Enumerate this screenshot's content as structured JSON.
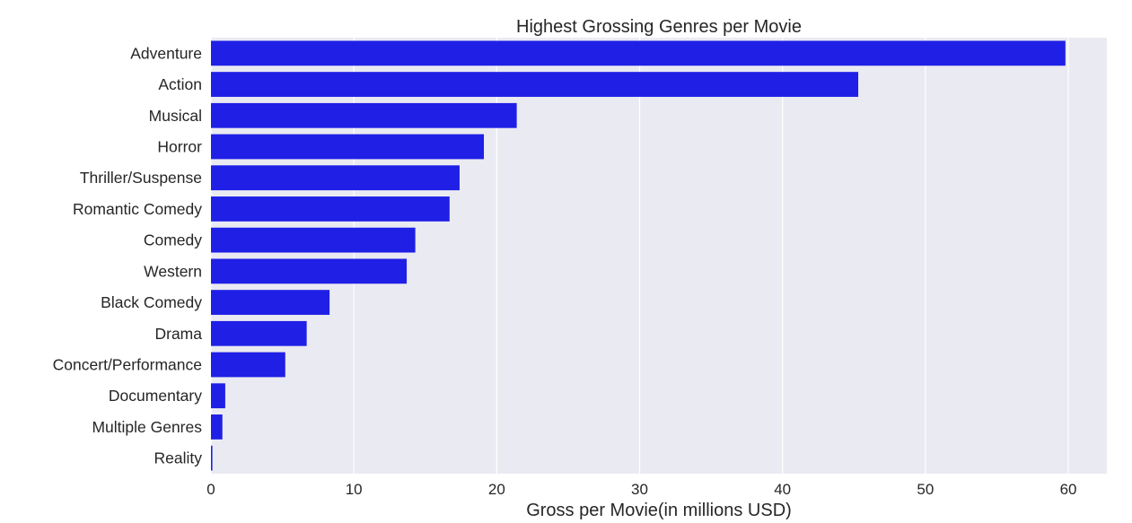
{
  "chart_data": {
    "type": "bar",
    "orientation": "horizontal",
    "title": "Highest Grossing Genres per Movie",
    "xlabel": "Gross per Movie(in millions USD)",
    "ylabel": "",
    "categories": [
      "Adventure",
      "Action",
      "Musical",
      "Horror",
      "Thriller/Suspense",
      "Romantic Comedy",
      "Comedy",
      "Western",
      "Black Comedy",
      "Drama",
      "Concert/Performance",
      "Documentary",
      "Multiple Genres",
      "Reality"
    ],
    "values": [
      59.8,
      45.3,
      21.4,
      19.1,
      17.4,
      16.7,
      14.3,
      13.7,
      8.3,
      6.7,
      5.2,
      1.0,
      0.8,
      0.1
    ],
    "xlim": [
      0,
      62.7
    ],
    "xticks": [
      0,
      10,
      20,
      30,
      40,
      50,
      60
    ],
    "grid": "vertical",
    "style": "seaborn-darkgrid",
    "colors": {
      "bar": "#1f1fe6",
      "background": "#eaeaf2",
      "grid": "#ffffff"
    }
  }
}
